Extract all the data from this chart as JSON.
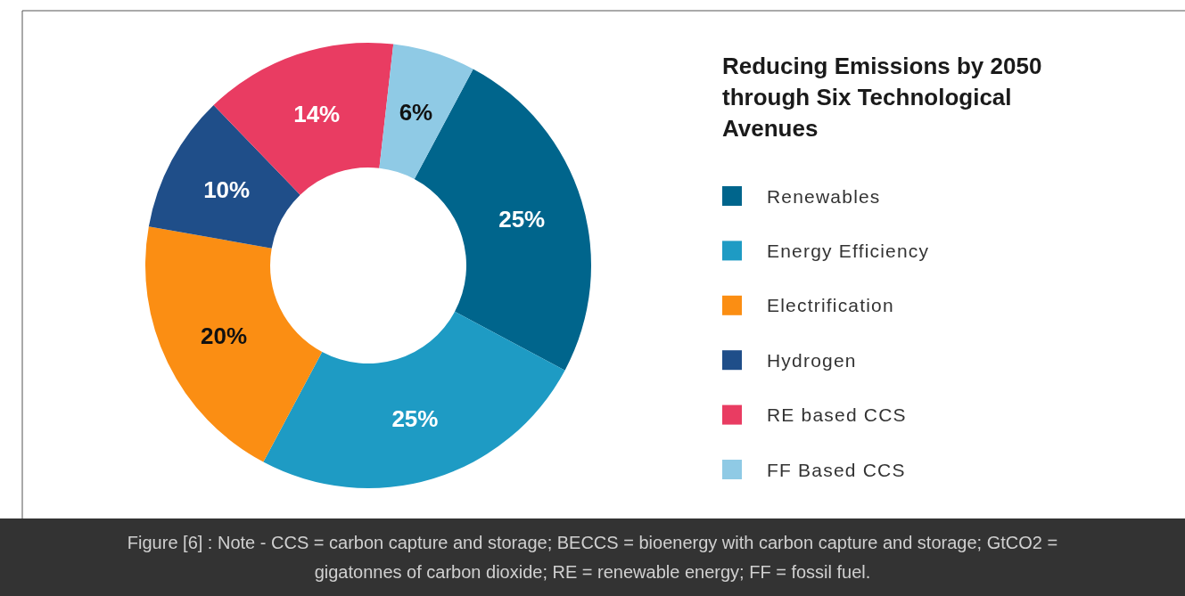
{
  "chart_data": {
    "type": "donut",
    "title": "Reducing Emissions by 2050 through Six Technological Avenues",
    "categories": [
      "Renewables",
      "Energy Efficiency",
      "Electrification",
      "Hydrogen",
      "RE based CCS",
      "FF Based CCS"
    ],
    "values": [
      25,
      25,
      20,
      10,
      14,
      6
    ],
    "colors": [
      "#00658c",
      "#1e9bc4",
      "#fb8e13",
      "#1f4e89",
      "#e93c62",
      "#8fcae5"
    ],
    "value_labels": [
      "25%",
      "25%",
      "20%",
      "10%",
      "14%",
      "6%"
    ],
    "legend": "right",
    "annotations": [
      "Figure [6] : Note - CCS = carbon capture and storage; BECCS = bioenergy with carbon capture and storage; GtCO2 = gigatonnes of carbon dioxide; RE = renewable energy; FF = fossil fuel."
    ]
  }
}
